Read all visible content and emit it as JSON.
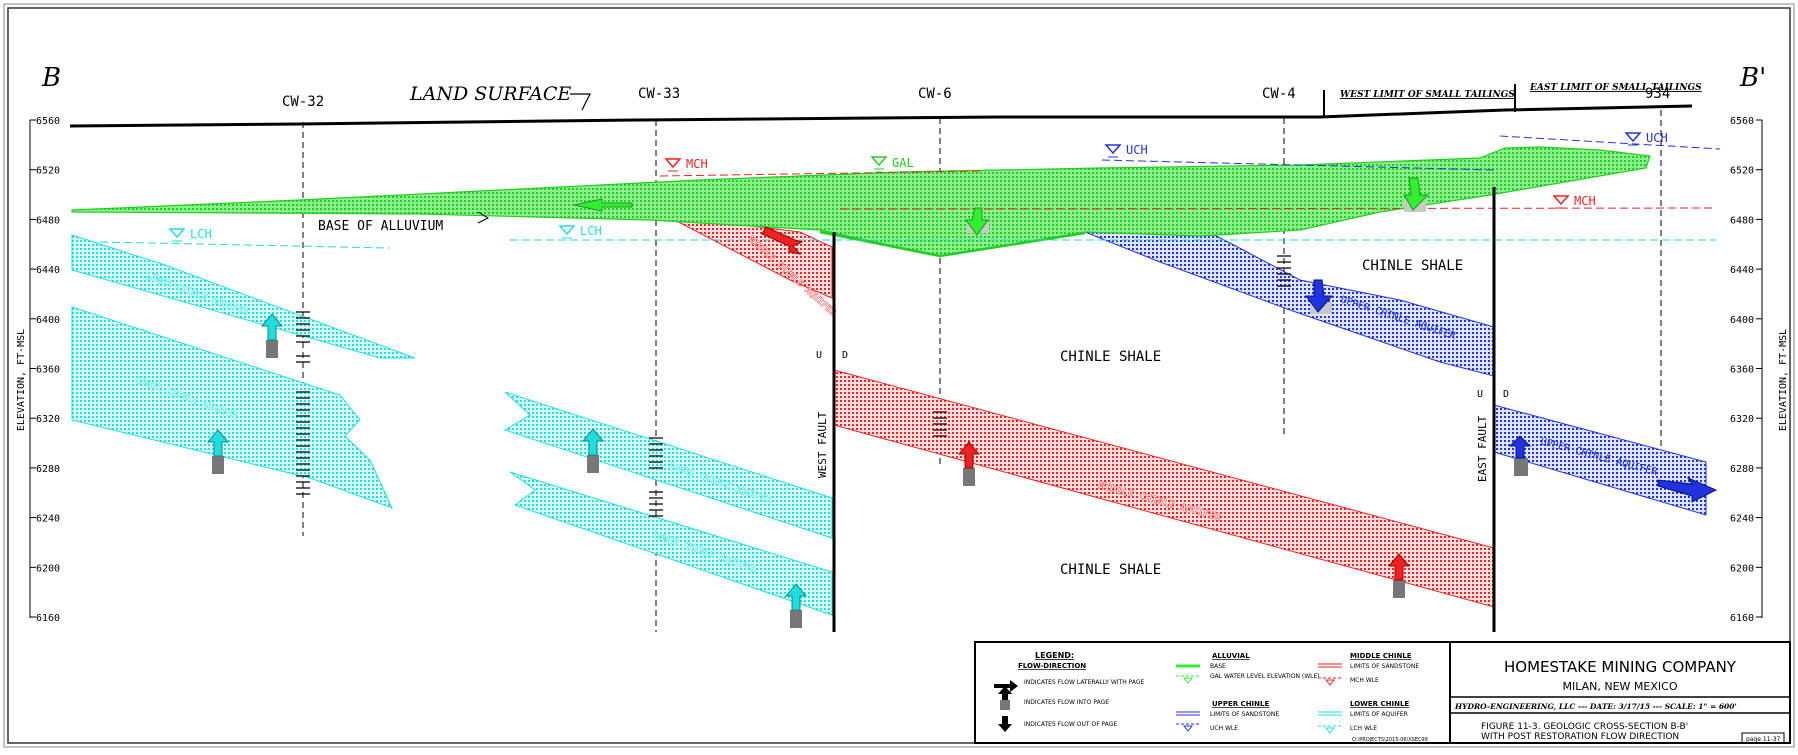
{
  "section": {
    "left": "B",
    "right": "B'",
    "land_surface": "LAND SURFACE"
  },
  "wells": [
    {
      "id": "cw32",
      "name": "CW-32"
    },
    {
      "id": "cw33",
      "name": "CW-33"
    },
    {
      "id": "cw6",
      "name": "CW-6"
    },
    {
      "id": "cw4",
      "name": "CW-4"
    },
    {
      "id": "w934",
      "name": "934"
    }
  ],
  "limits": {
    "west": "WEST LIMIT OF SMALL TAILINGS",
    "east": "EAST LIMIT OF SMALL TAILINGS"
  },
  "elevation": {
    "label": "ELEVATION, FT-MSL",
    "ticks": [
      "6560",
      "6520",
      "6480",
      "6440",
      "6400",
      "6360",
      "6320",
      "6280",
      "6240",
      "6200",
      "6160"
    ]
  },
  "units": {
    "base_alluvium": "BASE OF ALLUVIUM",
    "chinle_shale": "CHINLE SHALE",
    "lower_chinle": "LOWER CHINLE AQUIFER",
    "middle_chinle": "MIDDLE CHINLE AQUIFER",
    "upper_chinle": "UPPER CHINLE AQUIFER"
  },
  "water_levels": {
    "gal": "GAL",
    "mch": "MCH",
    "uch": "UCH",
    "lch": "LCH"
  },
  "faults": {
    "west": "WEST FAULT",
    "east": "EAST FAULT",
    "u": "U",
    "d": "D"
  },
  "legend": {
    "title": "LEGEND:",
    "flow_title": "FLOW-DIRECTION",
    "flow_lateral": "INDICATES FLOW LATERALLY WITH PAGE",
    "flow_into": "INDICATES FLOW INTO PAGE",
    "flow_out": "INDICATES FLOW OUT OF PAGE",
    "alluvial": "ALLUVIAL",
    "alluvial_base": "BASE",
    "alluvial_wle": "GAL WATER LEVEL ELEVATION (WLE)",
    "upper_chinle": "UPPER CHINLE",
    "upper_limits": "LIMITS OF SANDSTONE",
    "upper_wle": "UCH WLE",
    "middle_chinle": "MIDDLE CHINLE",
    "middle_limits": "LIMITS OF SANDSTONE",
    "middle_wle": "MCH WLE",
    "lower_chinle": "LOWER CHINLE",
    "lower_limits": "LIMITS OF AQUIFER",
    "lower_wle": "LCH WLE",
    "path": "O:\\PROJECTS\\2015-06\\XSEC99"
  },
  "title_block": {
    "company": "HOMESTAKE MINING COMPANY",
    "location": "MILAN, NEW MEXICO",
    "info": "HYDRO-ENGINEERING, LLC --- DATE: 3/17/15 --- SCALE: 1\" = 600'",
    "fig_line1": "FIGURE 11-3. GEOLOGIC CROSS-SECTION B-B'",
    "fig_line2": "WITH POST RESTORATION FLOW DIRECTION",
    "page": "page 11-37"
  },
  "colors": {
    "alluvial": "#33ee33",
    "upper": "#2233dd",
    "middle": "#ee2222",
    "lower": "#22dddd"
  }
}
